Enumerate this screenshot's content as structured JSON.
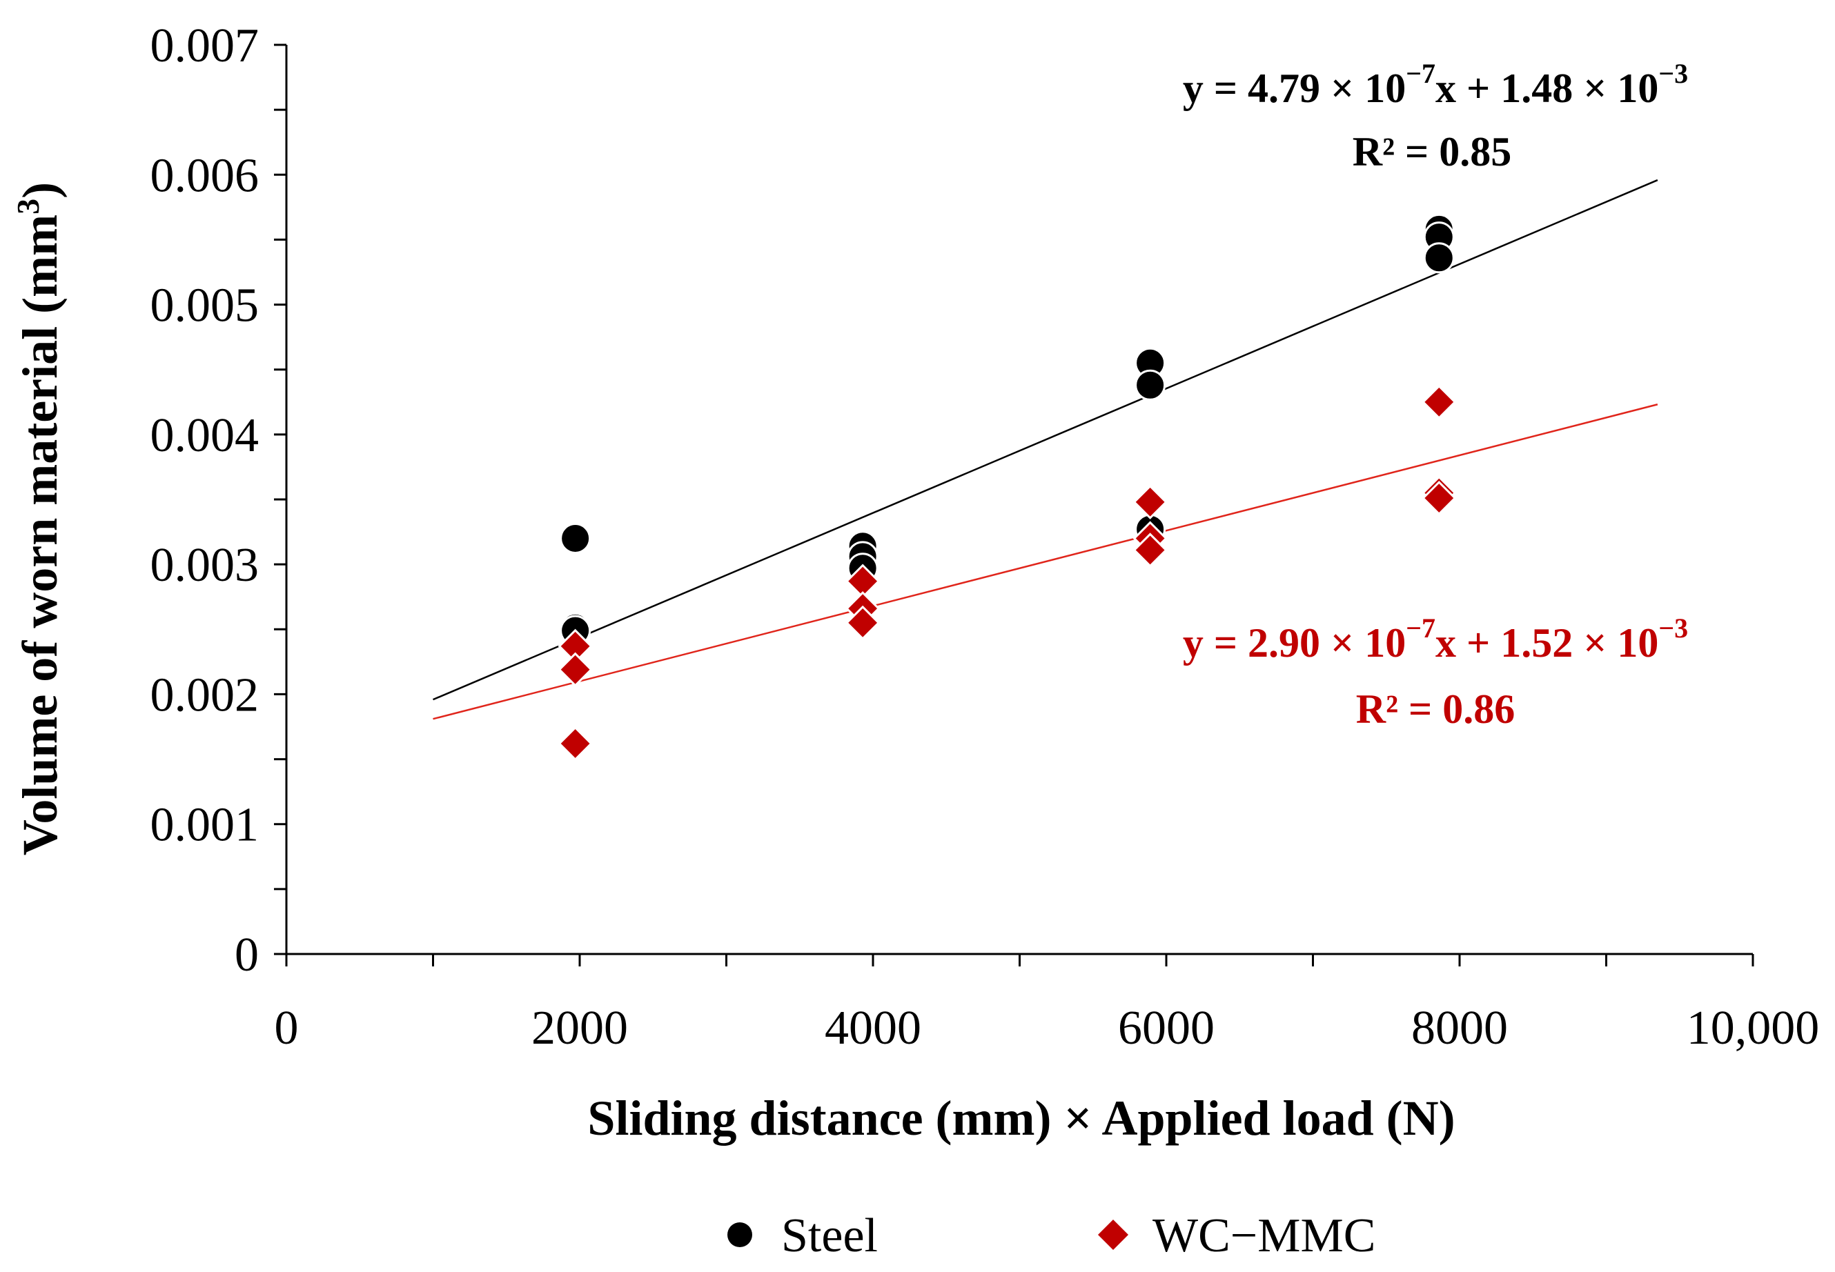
{
  "chart_data": {
    "type": "scatter",
    "title": "",
    "xlabel": "Sliding distance (mm) × Applied load (N)",
    "ylabel_main": "Volume of worn material (mm",
    "ylabel_sup": "3",
    "ylabel_close": ")",
    "xlim": [
      0,
      10000
    ],
    "ylim": [
      0,
      0.007
    ],
    "x_ticks": [
      0,
      2000,
      4000,
      6000,
      8000,
      10000
    ],
    "x_tick_labels": [
      "0",
      "2000",
      "4000",
      "6000",
      "8000",
      "10,000"
    ],
    "y_ticks": [
      0,
      0.001,
      0.002,
      0.003,
      0.004,
      0.005,
      0.006,
      0.007
    ],
    "y_tick_labels": [
      "0",
      "0.001",
      "0.002",
      "0.003",
      "0.004",
      "0.005",
      "0.006",
      "0.007"
    ],
    "legend_position": "bottom",
    "series": [
      {
        "name": "Steel",
        "marker": "circle",
        "color": "#000000",
        "points": [
          [
            1970,
            0.0032
          ],
          [
            1970,
            0.00251
          ],
          [
            1970,
            0.00249
          ],
          [
            3930,
            0.00314
          ],
          [
            3930,
            0.00306
          ],
          [
            3930,
            0.00297
          ],
          [
            5890,
            0.00455
          ],
          [
            5890,
            0.00438
          ],
          [
            5890,
            0.00327
          ],
          [
            7860,
            0.00558
          ],
          [
            7860,
            0.00552
          ],
          [
            7860,
            0.00536
          ]
        ],
        "fit": {
          "slope": 4.79e-07,
          "intercept": 0.00148,
          "x_range": [
            1000,
            9350
          ]
        },
        "equation_main": "y = 4.79 × 10",
        "equation_exp": "−7",
        "equation_mid": "x + 1.48 × 10",
        "equation_exp2": "−3",
        "r2_label": "R² = 0.85",
        "line_color": "#000000"
      },
      {
        "name": "WC−MMC",
        "marker": "diamond",
        "color": "#c00000",
        "points": [
          [
            1970,
            0.00237
          ],
          [
            1970,
            0.00219
          ],
          [
            1970,
            0.00162
          ],
          [
            3930,
            0.00287
          ],
          [
            3930,
            0.00266
          ],
          [
            3930,
            0.00255
          ],
          [
            5890,
            0.00348
          ],
          [
            5890,
            0.0032
          ],
          [
            5890,
            0.00311
          ],
          [
            7860,
            0.00425
          ],
          [
            7860,
            0.00355
          ],
          [
            7860,
            0.00351
          ]
        ],
        "fit": {
          "slope": 2.9e-07,
          "intercept": 0.00152,
          "x_range": [
            1000,
            9350
          ]
        },
        "equation_main": "y = 2.90 × 10",
        "equation_exp": "−7",
        "equation_mid": "x + 1.52 × 10",
        "equation_exp2": "−3",
        "r2_label": "R² = 0.86",
        "line_color": "#e0251b"
      }
    ]
  }
}
